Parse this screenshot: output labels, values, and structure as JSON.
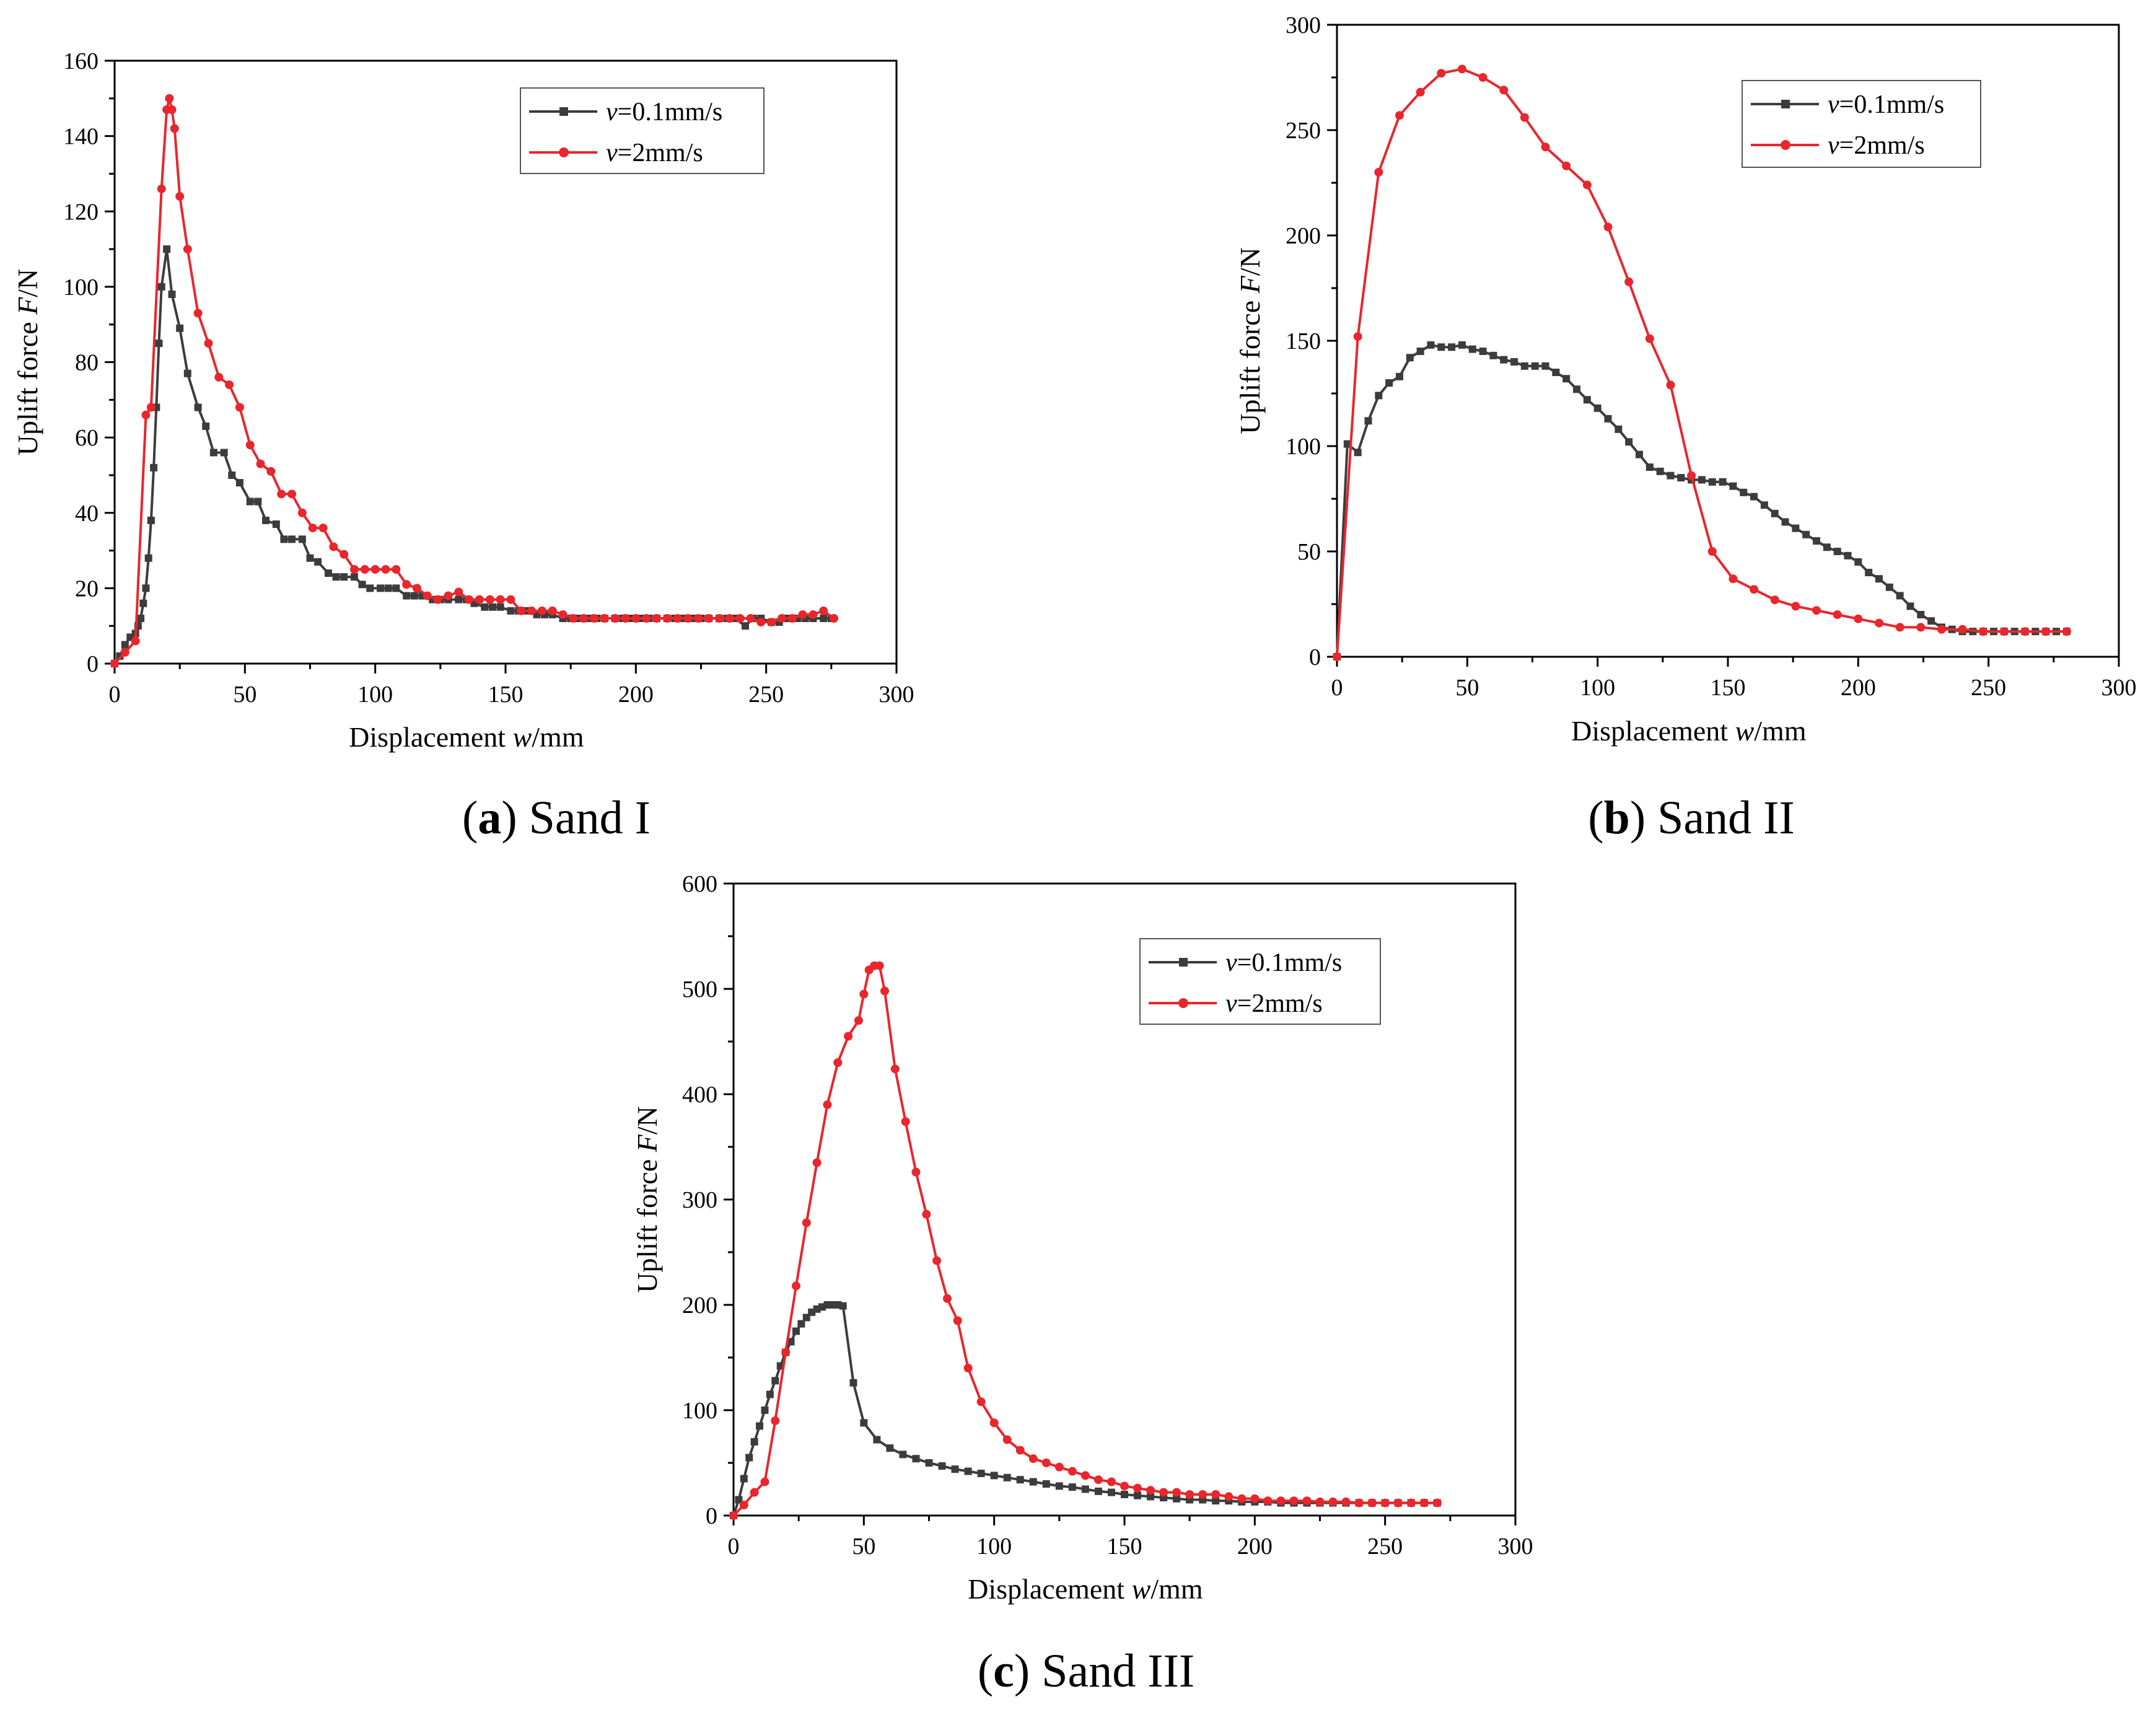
{
  "colors": {
    "series_a": "#3c3c3c",
    "series_b": "#e8262c",
    "axis": "#000000"
  },
  "legend_parts": {
    "v": "v",
    "eq": "=",
    "a_val": "0.1mm/s",
    "b_val": "2mm/s"
  },
  "chart_data": [
    {
      "type": "line",
      "panel": "a",
      "caption_letter": "a",
      "caption_text": " Sand I",
      "xlabel_pre": "Displacement ",
      "xlabel_var": "w",
      "xlabel_post": "/mm",
      "ylabel_pre": "Uplift force ",
      "ylabel_var": "F",
      "ylabel_post": "/N",
      "xlim": [
        0,
        300
      ],
      "ylim": [
        0,
        160
      ],
      "xticks": [
        0,
        50,
        100,
        150,
        200,
        250,
        300
      ],
      "yticks": [
        0,
        20,
        40,
        60,
        80,
        100,
        120,
        140,
        160
      ],
      "legend_position": "top-right",
      "series": [
        {
          "name": "v=0.1mm/s",
          "marker": "square",
          "x": [
            0,
            2,
            4,
            6,
            8,
            9,
            10,
            11,
            12,
            13,
            14,
            15,
            16,
            17,
            18,
            20,
            22,
            25,
            28,
            32,
            35,
            38,
            42,
            45,
            48,
            52,
            55,
            58,
            62,
            65,
            68,
            72,
            75,
            78,
            82,
            85,
            88,
            92,
            95,
            98,
            102,
            105,
            108,
            112,
            115,
            118,
            122,
            125,
            128,
            132,
            135,
            138,
            142,
            145,
            148,
            152,
            155,
            158,
            162,
            165,
            168,
            172,
            175,
            178,
            182,
            185,
            188,
            192,
            195,
            198,
            202,
            205,
            208,
            212,
            215,
            218,
            222,
            225,
            228,
            232,
            235,
            238,
            242,
            245,
            248,
            252,
            255,
            258,
            262,
            265,
            268,
            272,
            275
          ],
          "y": [
            0,
            2,
            5,
            7,
            8,
            10,
            12,
            16,
            20,
            28,
            38,
            52,
            68,
            85,
            100,
            110,
            98,
            89,
            77,
            68,
            63,
            56,
            56,
            50,
            48,
            43,
            43,
            38,
            37,
            33,
            33,
            33,
            28,
            27,
            24,
            23,
            23,
            23,
            21,
            20,
            20,
            20,
            20,
            18,
            18,
            18,
            17,
            17,
            17,
            17,
            17,
            16,
            15,
            15,
            15,
            14,
            14,
            14,
            13,
            13,
            13,
            12,
            12,
            12,
            12,
            12,
            12,
            12,
            12,
            12,
            12,
            12,
            12,
            12,
            12,
            12,
            12,
            12,
            12,
            12,
            12,
            12,
            10,
            12,
            12,
            11,
            11,
            12,
            12,
            12,
            12,
            12,
            12
          ]
        },
        {
          "name": "v=2mm/s",
          "marker": "circle",
          "x": [
            0,
            4,
            8,
            12,
            14,
            18,
            20,
            21,
            22,
            23,
            25,
            28,
            32,
            36,
            40,
            44,
            48,
            52,
            56,
            60,
            64,
            68,
            72,
            76,
            80,
            84,
            88,
            92,
            96,
            100,
            104,
            108,
            112,
            116,
            120,
            124,
            128,
            132,
            136,
            140,
            144,
            148,
            152,
            156,
            160,
            164,
            168,
            172,
            176,
            180,
            184,
            188,
            192,
            196,
            200,
            204,
            208,
            212,
            216,
            220,
            224,
            228,
            232,
            236,
            240,
            244,
            248,
            252,
            256,
            260,
            264,
            268,
            272,
            276
          ],
          "y": [
            0,
            3,
            6,
            66,
            68,
            126,
            147,
            150,
            147,
            142,
            124,
            110,
            93,
            85,
            76,
            74,
            68,
            58,
            53,
            51,
            45,
            45,
            40,
            36,
            36,
            31,
            29,
            25,
            25,
            25,
            25,
            25,
            21,
            20,
            18,
            17,
            18,
            19,
            17,
            17,
            17,
            17,
            17,
            14,
            14,
            14,
            14,
            13,
            12,
            12,
            12,
            12,
            12,
            12,
            12,
            12,
            12,
            12,
            12,
            12,
            12,
            12,
            12,
            12,
            12,
            12,
            11,
            11,
            12,
            12,
            13,
            13,
            14,
            12
          ]
        }
      ]
    },
    {
      "type": "line",
      "panel": "b",
      "caption_letter": "b",
      "caption_text": " Sand II",
      "xlabel_pre": "Displacement ",
      "xlabel_var": "w",
      "xlabel_post": "/mm",
      "ylabel_pre": "Uplift force ",
      "ylabel_var": "F",
      "ylabel_post": "/N",
      "xlim": [
        0,
        300
      ],
      "ylim": [
        0,
        300
      ],
      "xticks": [
        0,
        50,
        100,
        150,
        200,
        250,
        300
      ],
      "yticks": [
        0,
        50,
        100,
        150,
        200,
        250,
        300
      ],
      "legend_position": "top-right",
      "series": [
        {
          "name": "v=0.1mm/s",
          "marker": "square",
          "x": [
            0,
            4,
            8,
            12,
            16,
            20,
            24,
            28,
            32,
            36,
            40,
            44,
            48,
            52,
            56,
            60,
            64,
            68,
            72,
            76,
            80,
            84,
            88,
            92,
            96,
            100,
            104,
            108,
            112,
            116,
            120,
            124,
            128,
            132,
            136,
            140,
            144,
            148,
            152,
            156,
            160,
            164,
            168,
            172,
            176,
            180,
            184,
            188,
            192,
            196,
            200,
            204,
            208,
            212,
            216,
            220,
            224,
            228,
            232,
            236,
            240,
            244,
            248,
            252,
            256,
            260,
            264,
            268,
            272,
            276,
            280
          ],
          "y": [
            0,
            101,
            97,
            112,
            124,
            130,
            133,
            142,
            145,
            148,
            147,
            147,
            148,
            146,
            145,
            143,
            141,
            140,
            138,
            138,
            138,
            135,
            132,
            127,
            122,
            118,
            113,
            108,
            102,
            96,
            90,
            88,
            86,
            85,
            84,
            84,
            83,
            83,
            81,
            78,
            76,
            72,
            68,
            64,
            61,
            58,
            55,
            52,
            50,
            48,
            45,
            40,
            37,
            33,
            29,
            24,
            20,
            17,
            14,
            13,
            12,
            12,
            12,
            12,
            12,
            12,
            12,
            12,
            12,
            12,
            12
          ]
        },
        {
          "name": "v=2mm/s",
          "marker": "circle",
          "x": [
            0,
            8,
            16,
            24,
            32,
            40,
            48,
            56,
            64,
            72,
            80,
            88,
            96,
            104,
            112,
            120,
            128,
            136,
            144,
            152,
            160,
            168,
            176,
            184,
            192,
            200,
            208,
            216,
            224,
            232,
            240,
            248,
            256,
            264,
            272,
            280
          ],
          "y": [
            0,
            152,
            230,
            257,
            268,
            277,
            279,
            275,
            269,
            256,
            242,
            233,
            224,
            204,
            178,
            151,
            129,
            86,
            50,
            37,
            32,
            27,
            24,
            22,
            20,
            18,
            16,
            14,
            14,
            13,
            13,
            12,
            12,
            12,
            12,
            12
          ]
        }
      ]
    },
    {
      "type": "line",
      "panel": "c",
      "caption_letter": "c",
      "caption_text": " Sand III",
      "xlabel_pre": "Displacement ",
      "xlabel_var": "w",
      "xlabel_post": "/mm",
      "ylabel_pre": "Uplift force ",
      "ylabel_var": "F",
      "ylabel_post": "/N",
      "xlim": [
        0,
        300
      ],
      "ylim": [
        0,
        600
      ],
      "xticks": [
        0,
        50,
        100,
        150,
        200,
        250,
        300
      ],
      "yticks": [
        0,
        100,
        200,
        300,
        400,
        500,
        600
      ],
      "legend_position": "top-right",
      "series": [
        {
          "name": "v=0.1mm/s",
          "marker": "square",
          "x": [
            0,
            2,
            4,
            6,
            8,
            10,
            12,
            14,
            16,
            18,
            20,
            22,
            24,
            26,
            28,
            30,
            32,
            34,
            36,
            38,
            40,
            42,
            46,
            50,
            55,
            60,
            65,
            70,
            75,
            80,
            85,
            90,
            95,
            100,
            105,
            110,
            115,
            120,
            125,
            130,
            135,
            140,
            145,
            150,
            155,
            160,
            165,
            170,
            175,
            180,
            185,
            190,
            195,
            200,
            205,
            210,
            215,
            220,
            225,
            230,
            235,
            240,
            245,
            250,
            255,
            260,
            265,
            270
          ],
          "y": [
            0,
            15,
            35,
            55,
            70,
            85,
            100,
            115,
            128,
            142,
            155,
            165,
            175,
            182,
            188,
            193,
            196,
            198,
            200,
            200,
            200,
            199,
            126,
            88,
            72,
            64,
            58,
            54,
            50,
            47,
            44,
            42,
            40,
            38,
            36,
            34,
            32,
            30,
            28,
            27,
            25,
            23,
            22,
            20,
            19,
            18,
            17,
            16,
            15,
            15,
            14,
            14,
            13,
            13,
            13,
            12,
            12,
            12,
            12,
            12,
            12,
            12,
            12,
            12,
            12,
            12,
            12,
            12
          ]
        },
        {
          "name": "v=2mm/s",
          "marker": "circle",
          "x": [
            0,
            4,
            8,
            12,
            16,
            20,
            24,
            28,
            32,
            36,
            40,
            44,
            48,
            50,
            52,
            54,
            56,
            58,
            62,
            66,
            70,
            74,
            78,
            82,
            86,
            90,
            95,
            100,
            105,
            110,
            115,
            120,
            125,
            130,
            135,
            140,
            145,
            150,
            155,
            160,
            165,
            170,
            175,
            180,
            185,
            190,
            195,
            200,
            205,
            210,
            215,
            220,
            225,
            230,
            235,
            240,
            245,
            250,
            255,
            260,
            265,
            270
          ],
          "y": [
            0,
            10,
            22,
            32,
            90,
            155,
            218,
            278,
            335,
            390,
            430,
            455,
            470,
            495,
            518,
            522,
            522,
            498,
            424,
            374,
            326,
            286,
            242,
            206,
            185,
            140,
            108,
            88,
            72,
            62,
            54,
            50,
            46,
            42,
            38,
            34,
            32,
            28,
            26,
            24,
            22,
            22,
            20,
            20,
            20,
            18,
            16,
            16,
            14,
            14,
            14,
            14,
            13,
            13,
            13,
            12,
            12,
            12,
            12,
            12,
            12,
            12
          ]
        }
      ]
    }
  ]
}
